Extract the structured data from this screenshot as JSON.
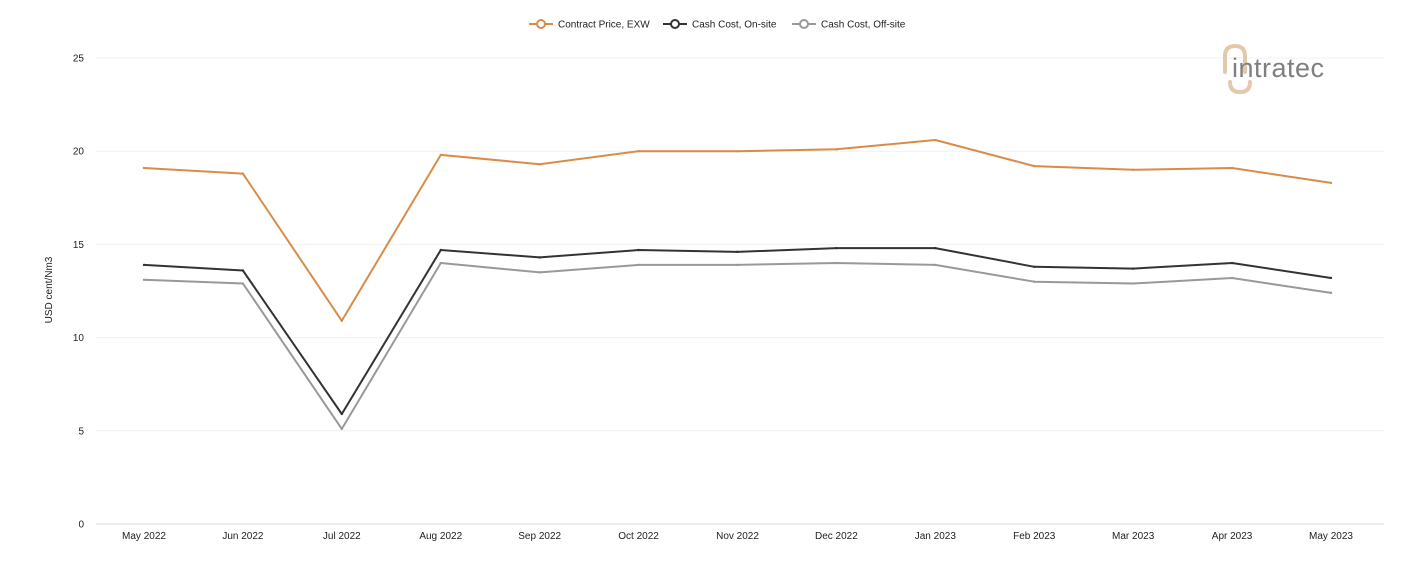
{
  "chart_data": {
    "type": "line",
    "title": "",
    "xlabel": "",
    "ylabel": "USD cent/Nm3",
    "ylim": [
      0,
      25
    ],
    "yticks": [
      0,
      5,
      10,
      15,
      20,
      25
    ],
    "grid": true,
    "legend_position": "top-center",
    "categories": [
      "May 2022",
      "Jun 2022",
      "Jul 2022",
      "Aug 2022",
      "Sep 2022",
      "Oct 2022",
      "Nov 2022",
      "Dec 2022",
      "Jan 2023",
      "Feb 2023",
      "Mar 2023",
      "Apr 2023",
      "May 2023"
    ],
    "series": [
      {
        "name": "Contract Price, EXW",
        "color": "#d98c47",
        "values": [
          19.1,
          18.8,
          10.9,
          19.8,
          19.3,
          20.0,
          20.0,
          20.1,
          20.6,
          19.2,
          19.0,
          19.1,
          18.3
        ]
      },
      {
        "name": "Cash Cost, On-site",
        "color": "#333333",
        "values": [
          13.9,
          13.6,
          5.9,
          14.7,
          14.3,
          14.7,
          14.6,
          14.8,
          14.8,
          13.8,
          13.7,
          14.0,
          13.2
        ]
      },
      {
        "name": "Cash Cost, Off-site",
        "color": "#999999",
        "values": [
          13.1,
          12.9,
          5.1,
          14.0,
          13.5,
          13.9,
          13.9,
          14.0,
          13.9,
          13.0,
          12.9,
          13.2,
          12.4
        ]
      }
    ]
  },
  "logo": {
    "text": "intratec",
    "text_color": "#7f7f7f",
    "accent_color": "#e3c8ad"
  }
}
